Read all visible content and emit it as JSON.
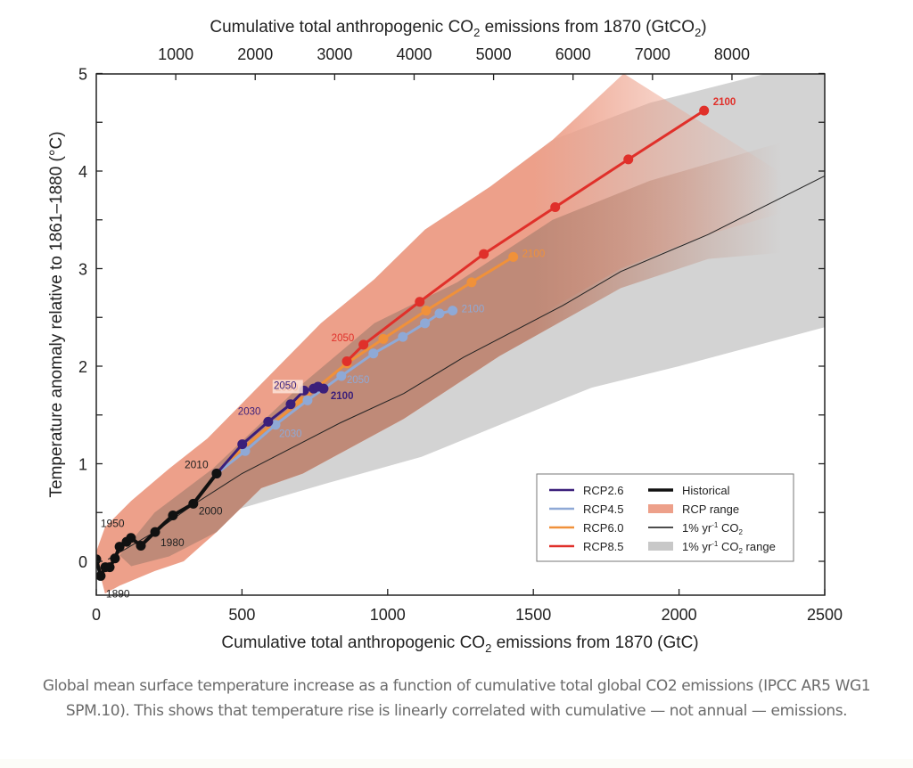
{
  "caption": "Global mean surface temperature increase as a function of cumulative total global CO2 emissions (IPCC AR5 WG1 SPM.10). This shows that temperature rise is linearly correlated with cumulative — not annual — emissions.",
  "chart_data": {
    "type": "line",
    "title": "",
    "xlabel_prefix": "Cumulative total anthropogenic CO",
    "xlabel_sub": "2",
    "xlabel_suffix": " emissions from 1870 (GtC)",
    "x2label_prefix": "Cumulative total anthropogenic CO",
    "x2label_sub": "2",
    "x2label_mid": " emissions from 1870 (GtCO",
    "x2label_sub2": "2",
    "x2label_suffix": ")",
    "ylabel": "Temperature anomaly relative to 1861–1880 (°C)",
    "xlim": [
      0,
      2500
    ],
    "ylim": [
      -0.35,
      5
    ],
    "xticks": [
      0,
      500,
      1000,
      1500,
      2000,
      2500
    ],
    "xtick_labels": [
      "0",
      "500",
      "1000",
      "1500",
      "2000",
      "2500"
    ],
    "x2ticks_gtco2": [
      1000,
      2000,
      3000,
      4000,
      5000,
      6000,
      7000,
      8000
    ],
    "x2tick_labels": [
      "1000",
      "2000",
      "3000",
      "4000",
      "5000",
      "6000",
      "7000",
      "8000"
    ],
    "yticks": [
      0,
      1,
      2,
      3,
      4,
      5
    ],
    "ytick_labels": [
      "0",
      "1",
      "2",
      "3",
      "4",
      "5"
    ],
    "yminor_ticks": [
      0.5,
      1.5,
      2.5,
      3.5,
      4.5
    ],
    "grid": false,
    "legend_position": "bottom-right",
    "legend": [
      {
        "label": "RCP2.6",
        "kind": "line",
        "color": "#3b1f7a"
      },
      {
        "label": "RCP4.5",
        "kind": "line",
        "color": "#8fa9d6"
      },
      {
        "label": "RCP6.0",
        "kind": "line",
        "color": "#f0913a"
      },
      {
        "label": "RCP8.5",
        "kind": "line",
        "color": "#e0302a"
      },
      {
        "label": "Historical",
        "kind": "line-thick",
        "color": "#111111"
      },
      {
        "label": "RCP range",
        "kind": "patch",
        "color": "#eda08a"
      },
      {
        "label": "1% yr",
        "sup": "-1",
        "tail": " CO",
        "sub": "2",
        "kind": "line-thin",
        "color": "#111111"
      },
      {
        "label": "1% yr",
        "sup": "-1",
        "tail": " CO",
        "sub": "2",
        "tail2": " range",
        "kind": "patch",
        "color": "#c8c8c8"
      }
    ],
    "ranges": {
      "one_percent_range": {
        "color": "#d3d3d3",
        "upper": [
          [
            0,
            0.05
          ],
          [
            60,
            0.3
          ],
          [
            250,
            0.85
          ],
          [
            382,
            1.26
          ],
          [
            771,
            2.44
          ],
          [
            954,
            2.89
          ],
          [
            1128,
            3.4
          ],
          [
            1352,
            3.84
          ],
          [
            1566,
            4.32
          ],
          [
            1900,
            4.7
          ],
          [
            2300,
            5.0
          ],
          [
            2500,
            5.0
          ]
        ],
        "lower": [
          [
            2500,
            2.4
          ],
          [
            2000,
            2.0
          ],
          [
            1700,
            1.78
          ],
          [
            1566,
            1.62
          ],
          [
            1116,
            1.07
          ],
          [
            792,
            0.8
          ],
          [
            505,
            0.55
          ],
          [
            300,
            0.3
          ],
          [
            150,
            0.1
          ],
          [
            40,
            -0.05
          ]
        ]
      },
      "rcp_range": {
        "color": "#eda08a",
        "upper": [
          [
            0,
            0.1
          ],
          [
            30,
            0.35
          ],
          [
            120,
            0.62
          ],
          [
            250,
            0.95
          ],
          [
            382,
            1.26
          ],
          [
            771,
            2.44
          ],
          [
            954,
            2.89
          ],
          [
            1128,
            3.4
          ],
          [
            1352,
            3.84
          ],
          [
            1566,
            4.32
          ],
          [
            1810,
            5.0
          ]
        ],
        "lower": [
          [
            2500,
            3.7
          ],
          [
            2100,
            3.35
          ],
          [
            1800,
            3.0
          ],
          [
            1566,
            2.6
          ],
          [
            1382,
            2.1
          ],
          [
            1055,
            1.46
          ],
          [
            709,
            0.9
          ],
          [
            566,
            0.75
          ],
          [
            413,
            0.3
          ],
          [
            300,
            0.0
          ],
          [
            200,
            -0.1
          ],
          [
            80,
            -0.25
          ],
          [
            30,
            -0.33
          ],
          [
            10,
            -0.1
          ]
        ]
      },
      "rcp_overlap": {
        "color": "#bf8a78",
        "upper": [
          [
            80,
            0.06
          ],
          [
            200,
            0.5
          ],
          [
            400,
            0.95
          ],
          [
            700,
            1.8
          ],
          [
            954,
            2.44
          ],
          [
            1239,
            2.86
          ],
          [
            1566,
            3.5
          ],
          [
            1900,
            3.9
          ],
          [
            2300,
            4.25
          ],
          [
            2500,
            4.4
          ]
        ],
        "lower": [
          [
            2500,
            3.2
          ],
          [
            2100,
            3.1
          ],
          [
            1800,
            2.8
          ],
          [
            1382,
            2.1
          ],
          [
            1055,
            1.46
          ],
          [
            709,
            0.9
          ],
          [
            566,
            0.75
          ],
          [
            413,
            0.3
          ],
          [
            250,
            0.05
          ],
          [
            120,
            -0.05
          ]
        ]
      }
    },
    "one_percent_line": {
      "name": "1% yr-1 CO2",
      "color": "#222222",
      "points": [
        [
          40,
          0.02
        ],
        [
          200,
          0.3
        ],
        [
          333,
          0.58
        ],
        [
          500,
          0.9
        ],
        [
          838,
          1.42
        ],
        [
          1055,
          1.72
        ],
        [
          1260,
          2.09
        ],
        [
          1600,
          2.62
        ],
        [
          1800,
          2.97
        ],
        [
          2100,
          3.35
        ],
        [
          2500,
          3.95
        ]
      ]
    },
    "series": [
      {
        "name": "Historical",
        "color": "#111111",
        "points": [
          [
            0,
            0.02
          ],
          [
            15,
            -0.15
          ],
          [
            31,
            -0.06
          ],
          [
            46,
            -0.06
          ],
          [
            64,
            0.03
          ],
          [
            80,
            0.15
          ],
          [
            104,
            0.2
          ],
          [
            119,
            0.24
          ],
          [
            153,
            0.16
          ],
          [
            202,
            0.3
          ],
          [
            263,
            0.47
          ],
          [
            333,
            0.59
          ],
          [
            413,
            0.9
          ]
        ],
        "labels": [
          {
            "text": "1890",
            "index": 1,
            "dx": 6,
            "dy": 24
          },
          {
            "text": "1950",
            "index": 7,
            "dx": -34,
            "dy": -12
          },
          {
            "text": "1980",
            "index": 9,
            "dx": 6,
            "dy": 16
          },
          {
            "text": "2000",
            "index": 11,
            "dx": 6,
            "dy": 12
          },
          {
            "text": "2010",
            "index": 12,
            "dx": -36,
            "dy": -6
          }
        ]
      },
      {
        "name": "RCP2.6",
        "color": "#3b1f7a",
        "points": [
          [
            413,
            0.9
          ],
          [
            501,
            1.2
          ],
          [
            590,
            1.43
          ],
          [
            667,
            1.61
          ],
          [
            713,
            1.75
          ],
          [
            746,
            1.77
          ],
          [
            761,
            1.79
          ],
          [
            780,
            1.77
          ]
        ],
        "labels": [
          {
            "text": "2030",
            "index": 2,
            "dx": -34,
            "dy": -8
          },
          {
            "text": "2050",
            "index": 4,
            "dx": -34,
            "dy": -2
          },
          {
            "text": "2100",
            "index": 7,
            "dx": 8,
            "dy": 12
          }
        ]
      },
      {
        "name": "RCP4.5",
        "color": "#8fa9d6",
        "points": [
          [
            413,
            0.9
          ],
          [
            511,
            1.13
          ],
          [
            615,
            1.4
          ],
          [
            725,
            1.65
          ],
          [
            841,
            1.9
          ],
          [
            951,
            2.13
          ],
          [
            1052,
            2.3
          ],
          [
            1128,
            2.44
          ],
          [
            1178,
            2.54
          ],
          [
            1223,
            2.57
          ]
        ],
        "labels": [
          {
            "text": "2030",
            "index": 2,
            "dx": 4,
            "dy": 14
          },
          {
            "text": "2050",
            "index": 4,
            "dx": 6,
            "dy": 8
          },
          {
            "text": "2100",
            "index": 9,
            "dx": 10,
            "dy": 2
          }
        ]
      },
      {
        "name": "RCP6.0",
        "color": "#f0913a",
        "points": [
          [
            413,
            0.9
          ],
          [
            500,
            1.15
          ],
          [
            600,
            1.4
          ],
          [
            700,
            1.64
          ],
          [
            860,
            2.03
          ],
          [
            985,
            2.28
          ],
          [
            1132,
            2.57
          ],
          [
            1288,
            2.86
          ],
          [
            1431,
            3.12
          ]
        ],
        "labels": [
          {
            "text": "2050",
            "index": 3,
            "dx": -28,
            "dy": -12,
            "boxed": true
          },
          {
            "text": "2100",
            "index": 8,
            "dx": 10,
            "dy": 0
          }
        ]
      },
      {
        "name": "RCP8.5",
        "color": "#e0302a",
        "points": [
          [
            860,
            2.05
          ],
          [
            917,
            2.22
          ],
          [
            1110,
            2.66
          ],
          [
            1330,
            3.15
          ],
          [
            1575,
            3.63
          ],
          [
            1826,
            4.12
          ],
          [
            2086,
            4.62
          ]
        ],
        "labels": [
          {
            "text": "2050",
            "index": 1,
            "dx": -36,
            "dy": -4
          },
          {
            "text": "2100",
            "index": 6,
            "dx": 10,
            "dy": -6
          }
        ]
      }
    ]
  }
}
